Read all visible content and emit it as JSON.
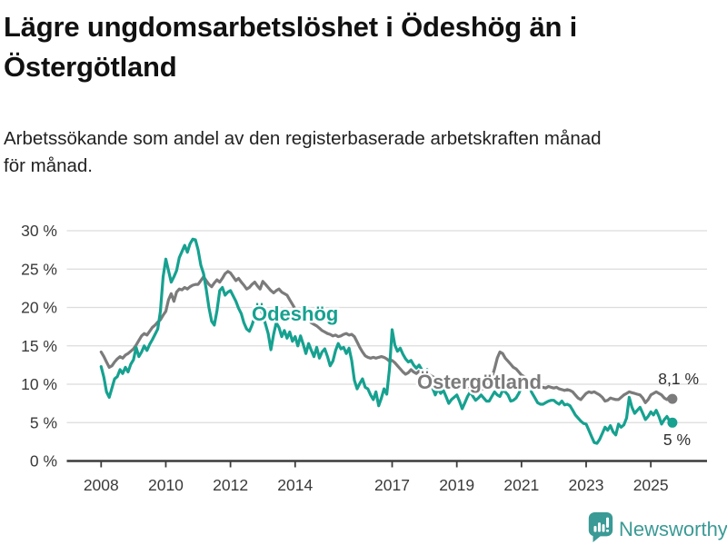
{
  "header": {
    "title_lines": [
      "Lägre ungdomsarbetslöshet i Ödeshög än i",
      "Östergötland"
    ],
    "subtitle_lines": [
      "Arbetssökande som andel av den registerbaserade arbetskraften månad",
      "för månad."
    ]
  },
  "colors": {
    "odeshog": "#16a190",
    "ostergotland": "#7b7b7b",
    "grid": "#dcdcdc",
    "axis": "#3c3c3c",
    "brand": "#3a9a95"
  },
  "footer": {
    "brand": "Newsworthy"
  },
  "chart_data": {
    "type": "line",
    "title": "Lägre ungdomsarbetslöshet i Ödeshög än i Östergötland",
    "subtitle": "Arbetssökande som andel av den registerbaserade arbetskraften månad för månad.",
    "x_unit": "month",
    "start_year": 2008,
    "end_point": "2025-09",
    "ylim": [
      0,
      30
    ],
    "grid": true,
    "y_ticks": [
      [
        0,
        "0 %"
      ],
      [
        5,
        "5 %"
      ],
      [
        10,
        "10 %"
      ],
      [
        15,
        "15 %"
      ],
      [
        20,
        "20 %"
      ],
      [
        25,
        "25 %"
      ],
      [
        30,
        "30 %"
      ]
    ],
    "x_ticks": [
      [
        2008,
        "2008"
      ],
      [
        2010,
        "2010"
      ],
      [
        2012,
        "2012"
      ],
      [
        2014,
        "2014"
      ],
      [
        2017,
        "2017"
      ],
      [
        2019,
        "2019"
      ],
      [
        2021,
        "2021"
      ],
      [
        2023,
        "2023"
      ],
      [
        2025,
        "2025"
      ]
    ],
    "series": [
      {
        "name": "Östergötland",
        "color": "#7b7b7b",
        "end_label": "8,1 %",
        "end_value": 8.1,
        "values_by_year": [
          [
            14.2,
            13.6,
            12.9,
            12.2,
            12.4,
            12.9,
            13.3,
            13.6,
            13.4,
            13.8,
            14.0,
            14.3
          ],
          [
            14.6,
            15.1,
            15.7,
            16.3,
            16.6,
            16.4,
            16.9,
            17.4,
            17.7,
            18.1,
            18.4,
            19.0
          ],
          [
            19.5,
            21.0,
            21.8,
            20.8,
            22.0,
            22.4,
            22.3,
            22.6,
            22.4,
            22.7,
            22.9,
            23.0
          ],
          [
            23.0,
            23.5,
            24.0,
            23.5,
            23.0,
            22.7,
            23.2,
            23.6,
            23.3,
            23.8,
            24.4,
            24.7
          ],
          [
            24.5,
            24.0,
            23.5,
            23.8,
            23.3,
            22.9,
            22.4,
            22.6,
            23.0,
            23.3,
            22.8,
            22.4
          ],
          [
            23.4,
            23.0,
            22.6,
            22.2,
            21.9,
            22.2,
            22.4,
            22.0,
            21.8,
            21.6,
            21.0,
            20.4
          ],
          [
            19.8,
            19.5,
            19.2,
            18.8,
            18.6,
            18.3,
            18.0,
            17.8,
            17.6,
            17.3,
            17.0,
            16.8
          ],
          [
            16.6,
            16.5,
            16.3,
            16.4,
            16.2,
            16.3,
            16.5,
            16.6,
            16.4,
            16.5,
            16.2,
            15.5
          ],
          [
            14.8,
            14.2,
            13.7,
            13.5,
            13.4,
            13.5,
            13.4,
            13.5,
            13.6,
            13.5,
            13.3,
            13.0
          ],
          [
            13.1,
            12.8,
            12.4,
            12.0,
            11.6,
            11.3,
            11.5,
            11.9,
            11.6,
            11.4,
            11.7,
            11.5
          ],
          [
            11.6,
            11.4,
            11.2,
            11.0,
            10.8,
            10.6,
            10.4,
            10.2,
            10.1,
            10.0,
            10.0,
            9.9
          ],
          [
            9.7,
            9.5,
            9.4,
            9.3,
            9.4,
            9.5,
            9.6,
            9.5,
            9.4,
            9.3,
            9.5,
            9.8
          ],
          [
            10.0,
            10.8,
            12.0,
            13.4,
            14.2,
            14.0,
            13.4,
            13.0,
            12.6,
            12.2,
            12.0,
            11.6
          ],
          [
            11.2,
            11.0,
            10.8,
            10.3,
            10.0,
            9.7,
            9.6,
            9.5,
            9.6,
            9.5,
            9.7,
            9.6
          ],
          [
            9.5,
            9.6,
            9.4,
            9.3,
            9.2,
            9.3,
            9.2,
            9.0,
            8.6,
            8.2,
            8.0,
            8.4
          ],
          [
            8.8,
            9.0,
            8.9,
            9.0,
            8.8,
            8.6,
            8.3,
            7.8,
            7.9,
            8.2,
            8.1,
            8.0
          ],
          [
            8.0,
            8.3,
            8.6,
            8.8,
            9.0,
            8.9,
            8.8,
            8.7,
            8.6,
            8.2,
            7.6,
            8.0
          ],
          [
            8.6,
            8.8,
            9.0,
            8.8,
            8.6,
            8.2,
            8.0,
            8.4,
            8.1
          ]
        ]
      },
      {
        "name": "Ödeshög",
        "color": "#16a190",
        "end_label": "5 %",
        "end_value": 5.0,
        "values_by_year": [
          [
            12.3,
            10.9,
            9.0,
            8.3,
            9.5,
            10.7,
            11.0,
            11.9,
            11.4,
            12.2,
            11.6,
            12.6
          ],
          [
            13.2,
            14.8,
            13.6,
            14.2,
            15.0,
            14.4,
            15.2,
            15.8,
            16.5,
            17.2,
            19.5,
            24.0
          ],
          [
            26.3,
            24.8,
            23.3,
            24.0,
            24.8,
            26.5,
            27.3,
            28.1,
            27.2,
            28.3,
            28.9,
            28.8
          ],
          [
            27.5,
            25.5,
            24.4,
            22.4,
            20.0,
            18.2,
            17.7,
            19.6,
            22.2,
            22.6,
            21.6,
            22.0
          ],
          [
            22.2,
            21.5,
            20.8,
            19.9,
            19.2,
            18.0,
            17.2,
            16.9,
            17.7,
            18.8,
            19.8,
            20.2
          ],
          [
            19.0,
            17.8,
            16.6,
            14.5,
            16.5,
            18.0,
            17.4,
            16.2,
            17.0,
            16.0,
            16.8,
            15.6
          ],
          [
            16.2,
            15.0,
            16.3,
            15.2,
            14.0,
            15.3,
            14.4,
            13.6,
            14.8,
            13.4,
            14.2,
            14.6
          ],
          [
            13.6,
            12.4,
            13.0,
            14.4,
            15.3,
            14.6,
            14.8,
            14.0,
            14.7,
            13.1,
            10.5,
            9.4
          ],
          [
            10.1,
            10.7,
            9.6,
            9.4,
            8.6,
            8.0,
            9.0,
            7.2,
            8.2,
            9.4,
            8.7,
            12.0
          ],
          [
            17.1,
            15.1,
            14.3,
            14.7,
            13.9,
            13.3,
            12.9,
            13.1,
            12.5,
            12.1,
            12.5,
            11.9
          ],
          [
            11.5,
            11.9,
            10.8,
            9.5,
            8.6,
            9.4,
            8.8,
            9.2,
            8.4,
            7.5,
            8.0,
            8.3
          ],
          [
            8.6,
            7.8,
            6.8,
            7.6,
            8.4,
            9.0,
            8.4,
            7.9,
            8.2,
            8.6,
            8.2,
            7.8
          ],
          [
            7.8,
            8.4,
            9.0,
            8.6,
            8.4,
            9.2,
            9.0,
            8.6,
            7.8,
            7.9,
            8.2,
            8.8
          ],
          [
            9.6,
            9.9,
            9.7,
            9.5,
            8.8,
            8.2,
            7.6,
            7.4,
            7.4,
            7.6,
            7.8,
            7.9
          ],
          [
            7.9,
            7.6,
            7.4,
            7.8,
            7.3,
            7.4,
            7.2,
            6.6,
            6.0,
            5.6,
            5.2,
            4.9
          ],
          [
            4.8,
            4.0,
            3.2,
            2.4,
            2.3,
            2.8,
            3.6,
            4.4,
            4.0,
            4.6,
            3.8,
            3.4
          ],
          [
            4.8,
            4.4,
            4.7,
            5.6,
            8.3,
            7.0,
            6.2,
            6.6,
            7.0,
            6.2,
            5.4,
            5.8
          ],
          [
            6.4,
            6.0,
            6.6,
            5.8,
            4.8,
            5.4,
            5.8,
            5.2,
            5.0
          ]
        ]
      }
    ],
    "legend_position": "inline-labels"
  }
}
